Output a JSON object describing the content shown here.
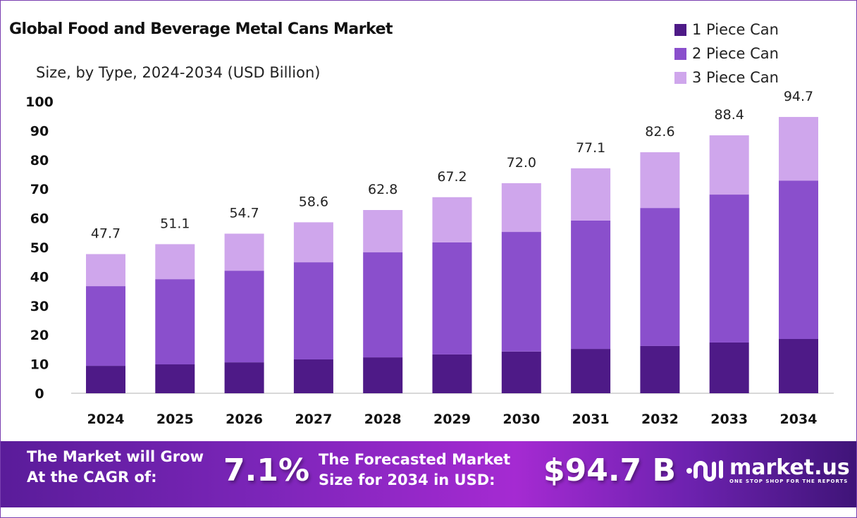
{
  "chart_data": {
    "type": "bar",
    "stacked": true,
    "title": "Global Food and Beverage Metal Cans Market",
    "subtitle": "Size, by Type, 2024-2034 (USD Billion)",
    "categories": [
      "2024",
      "2025",
      "2026",
      "2027",
      "2028",
      "2029",
      "2030",
      "2031",
      "2032",
      "2033",
      "2034"
    ],
    "series": [
      {
        "name": "1 Piece Can",
        "color": "#4e1a87",
        "values": [
          9.4,
          9.9,
          10.6,
          11.6,
          12.3,
          13.3,
          14.3,
          15.2,
          16.2,
          17.4,
          18.6
        ]
      },
      {
        "name": "2 Piece Can",
        "color": "#8a4fcc",
        "values": [
          27.3,
          29.2,
          31.4,
          33.3,
          36.0,
          38.4,
          41.0,
          44.0,
          47.3,
          50.7,
          54.3
        ]
      },
      {
        "name": "3 Piece Can",
        "color": "#cfa6ec",
        "values": [
          11.0,
          12.0,
          12.7,
          13.7,
          14.5,
          15.5,
          16.7,
          17.9,
          19.1,
          20.3,
          21.8
        ]
      }
    ],
    "totals": [
      "47.7",
      "51.1",
      "54.7",
      "58.6",
      "62.8",
      "67.2",
      "72.0",
      "77.1",
      "82.6",
      "88.4",
      "94.7"
    ],
    "yticks": [
      "0",
      "10",
      "20",
      "30",
      "40",
      "50",
      "60",
      "70",
      "80",
      "90",
      "100"
    ],
    "ylim": [
      0,
      100
    ],
    "grid": false,
    "legend_position": "top-right"
  },
  "banner": {
    "cagr_label_line1": "The Market will Grow",
    "cagr_label_line2": "At the CAGR of:",
    "cagr_value": "7.1%",
    "forecast_label_line1": "The Forecasted Market",
    "forecast_label_line2": "Size for 2034 in USD:",
    "forecast_value": "$94.7 B",
    "logo_name": "market.us",
    "logo_tagline": "ONE STOP SHOP FOR THE REPORTS"
  }
}
